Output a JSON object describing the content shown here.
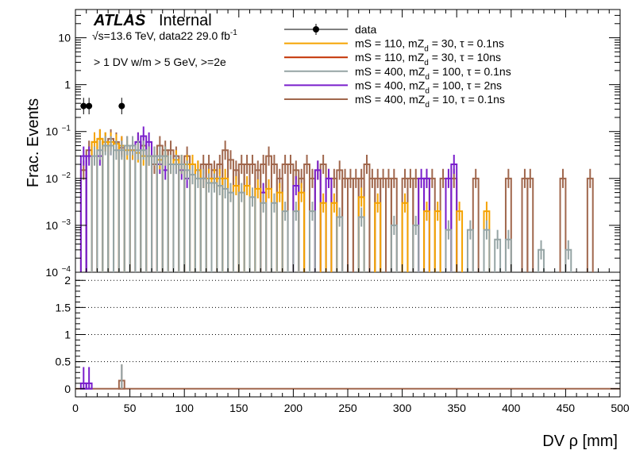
{
  "chart_data": {
    "type": "step-histogram",
    "experiment": "ATLAS",
    "status": "Internal",
    "energy_label": "√s=13.6 TeV, data22 29.0 fb",
    "energy_sup": "-1",
    "selection": "> 1 DV w/m > 5 GeV, >=2e",
    "ylabel": "Frac. Events",
    "xlabel": "DV ρ [mm]",
    "xlim": [
      0,
      500
    ],
    "ylim_log": [
      0.0001,
      40
    ],
    "ratio_ylim": [
      -0.15,
      2.15
    ],
    "x_ticks": [
      "0",
      "50",
      "100",
      "150",
      "200",
      "250",
      "300",
      "350",
      "400",
      "450",
      "500"
    ],
    "y_ticks": [
      {
        "v": 10,
        "base": "10",
        "exp": ""
      },
      {
        "v": 1,
        "base": "1",
        "exp": ""
      },
      {
        "v": 0.1,
        "base": "10",
        "exp": "−1"
      },
      {
        "v": 0.01,
        "base": "10",
        "exp": "−2"
      },
      {
        "v": 0.001,
        "base": "10",
        "exp": "−3"
      },
      {
        "v": 0.0001,
        "base": "10",
        "exp": "−4"
      }
    ],
    "ratio_ticks": [
      "2",
      "1.5",
      "1",
      "0.5",
      "0"
    ],
    "legend": [
      {
        "label": "data",
        "color": "#000000",
        "marker": true
      },
      {
        "label": "mS = 110, mZ",
        "sub": "d",
        "rest": " = 30, τ = 0.1ns",
        "color": "#f5a300"
      },
      {
        "label": "mS = 110, mZ",
        "sub": "d",
        "rest": " = 30, τ = 10ns",
        "color": "#c23000"
      },
      {
        "label": "mS = 400, mZ",
        "sub": "d",
        "rest": " = 100, τ = 0.1ns",
        "color": "#95a4a4"
      },
      {
        "label": "mS = 400, mZ",
        "sub": "d",
        "rest": " = 100, τ = 2ns",
        "color": "#7a1fcc"
      },
      {
        "label": "mS = 400, mZ",
        "sub": "d",
        "rest": " = 10, τ = 0.1ns",
        "color": "#a0674d"
      }
    ],
    "bin_width": 5,
    "data_points": [
      {
        "x": 7.5,
        "y": 0.35
      },
      {
        "x": 12.5,
        "y": 0.35
      },
      {
        "x": 42.5,
        "y": 0.35
      }
    ],
    "series": [
      {
        "name": "mS = 400, mZd = 10, τ = 0.1ns",
        "color": "#a0674d",
        "bins": [
          [
            5,
            0.015
          ],
          [
            10,
            0.04
          ],
          [
            15,
            0.06
          ],
          [
            20,
            0.07
          ],
          [
            25,
            0.06
          ],
          [
            30,
            0.07
          ],
          [
            35,
            0.06
          ],
          [
            40,
            0.045
          ],
          [
            45,
            0.05
          ],
          [
            50,
            0.04
          ],
          [
            55,
            0.06
          ],
          [
            60,
            0.05
          ],
          [
            65,
            0.03
          ],
          [
            70,
            0.02
          ],
          [
            75,
            0.05
          ],
          [
            80,
            0.04
          ],
          [
            85,
            0.04
          ],
          [
            90,
            0.03
          ],
          [
            95,
            0.02
          ],
          [
            100,
            0.03
          ],
          [
            105,
            0.02
          ],
          [
            110,
            0.015
          ],
          [
            115,
            0.02
          ],
          [
            120,
            0.02
          ],
          [
            125,
            0.015
          ],
          [
            130,
            0.02
          ],
          [
            135,
            0.04
          ],
          [
            140,
            0.025
          ],
          [
            145,
            0.015
          ],
          [
            150,
            0.02
          ],
          [
            155,
            0.02
          ],
          [
            160,
            0.02
          ],
          [
            165,
            0.015
          ],
          [
            170,
            0.02
          ],
          [
            175,
            0.03
          ],
          [
            180,
            0.02
          ],
          [
            185,
            0.01
          ],
          [
            190,
            0.02
          ],
          [
            195,
            0.02
          ],
          [
            200,
            0.015
          ],
          [
            205,
            0.01
          ],
          [
            210,
            0.02
          ],
          [
            215,
            0.01
          ],
          [
            220,
            0.015
          ],
          [
            225,
            0.02
          ],
          [
            230,
            0.01
          ],
          [
            235,
            0.01
          ],
          [
            240,
            0.015
          ],
          [
            245,
            0.01
          ],
          [
            250,
            0.01
          ],
          [
            255,
            0.01
          ],
          [
            260,
            0.01
          ],
          [
            265,
            0.02
          ],
          [
            270,
            0.01
          ],
          [
            275,
            0.01
          ],
          [
            280,
            0.01
          ],
          [
            285,
            0.01
          ],
          [
            290,
            0.01
          ],
          [
            300,
            0.01
          ],
          [
            305,
            0.01
          ],
          [
            310,
            0.01
          ],
          [
            320,
            0.01
          ],
          [
            325,
            0.01
          ],
          [
            335,
            0.01
          ],
          [
            345,
            0.01
          ],
          [
            365,
            0.01
          ],
          [
            395,
            0.01
          ],
          [
            410,
            0.01
          ],
          [
            415,
            0.01
          ],
          [
            445,
            0.01
          ],
          [
            470,
            0.01
          ]
        ]
      },
      {
        "name": "mS = 400, mZd = 100, τ = 2ns",
        "color": "#7a1fcc",
        "bins": [
          [
            5,
            0.03
          ],
          [
            10,
            0.03
          ],
          [
            20,
            0.03
          ],
          [
            30,
            0.05
          ],
          [
            40,
            0.05
          ],
          [
            50,
            0.04
          ],
          [
            55,
            0.06
          ],
          [
            60,
            0.08
          ],
          [
            65,
            0.06
          ],
          [
            70,
            0.03
          ],
          [
            75,
            0.02
          ],
          [
            80,
            0.015
          ],
          [
            90,
            0.02
          ],
          [
            95,
            0.015
          ],
          [
            100,
            0.01
          ],
          [
            115,
            0.01
          ],
          [
            125,
            0.01
          ],
          [
            170,
            0.005
          ],
          [
            200,
            0.007
          ],
          [
            220,
            0.015
          ],
          [
            230,
            0.01
          ],
          [
            315,
            0.01
          ],
          [
            320,
            0.01
          ],
          [
            340,
            0.01
          ],
          [
            345,
            0.02
          ]
        ]
      },
      {
        "name": "mS = 110, mZd = 30, τ = 0.1ns",
        "color": "#f5a300",
        "bins": [
          [
            15,
            0.06
          ],
          [
            20,
            0.07
          ],
          [
            25,
            0.06
          ],
          [
            30,
            0.06
          ],
          [
            35,
            0.055
          ],
          [
            40,
            0.05
          ],
          [
            45,
            0.04
          ],
          [
            50,
            0.04
          ],
          [
            55,
            0.035
          ],
          [
            60,
            0.03
          ],
          [
            65,
            0.03
          ],
          [
            70,
            0.03
          ],
          [
            75,
            0.025
          ],
          [
            80,
            0.03
          ],
          [
            85,
            0.02
          ],
          [
            90,
            0.025
          ],
          [
            95,
            0.02
          ],
          [
            100,
            0.02
          ],
          [
            105,
            0.02
          ],
          [
            110,
            0.015
          ],
          [
            115,
            0.01
          ],
          [
            120,
            0.01
          ],
          [
            125,
            0.01
          ],
          [
            130,
            0.01
          ],
          [
            135,
            0.01
          ],
          [
            145,
            0.007
          ],
          [
            155,
            0.007
          ],
          [
            165,
            0.006
          ],
          [
            175,
            0.006
          ],
          [
            185,
            0.005
          ],
          [
            205,
            0.005
          ],
          [
            225,
            0.003
          ],
          [
            235,
            0.003
          ],
          [
            260,
            0.004
          ],
          [
            275,
            0.003
          ],
          [
            300,
            0.003
          ],
          [
            320,
            0.002
          ],
          [
            330,
            0.002
          ],
          [
            350,
            0.002
          ],
          [
            375,
            0.002
          ]
        ]
      },
      {
        "name": "mS = 400, mZd = 100, τ = 0.1ns",
        "color": "#95a4a4",
        "bins": [
          [
            15,
            0.03
          ],
          [
            20,
            0.04
          ],
          [
            25,
            0.05
          ],
          [
            30,
            0.05
          ],
          [
            35,
            0.04
          ],
          [
            40,
            0.04
          ],
          [
            45,
            0.05
          ],
          [
            50,
            0.05
          ],
          [
            55,
            0.04
          ],
          [
            60,
            0.04
          ],
          [
            65,
            0.03
          ],
          [
            70,
            0.03
          ],
          [
            75,
            0.03
          ],
          [
            80,
            0.03
          ],
          [
            85,
            0.02
          ],
          [
            90,
            0.02
          ],
          [
            95,
            0.02
          ],
          [
            100,
            0.015
          ],
          [
            105,
            0.012
          ],
          [
            110,
            0.01
          ],
          [
            115,
            0.01
          ],
          [
            120,
            0.008
          ],
          [
            125,
            0.008
          ],
          [
            130,
            0.007
          ],
          [
            135,
            0.006
          ],
          [
            140,
            0.005
          ],
          [
            150,
            0.005
          ],
          [
            160,
            0.004
          ],
          [
            170,
            0.003
          ],
          [
            180,
            0.003
          ],
          [
            190,
            0.002
          ],
          [
            200,
            0.002
          ],
          [
            215,
            0.002
          ],
          [
            240,
            0.0015
          ],
          [
            260,
            0.0015
          ],
          [
            290,
            0.001
          ],
          [
            310,
            0.001
          ],
          [
            340,
            0.0008
          ],
          [
            360,
            0.0008
          ],
          [
            375,
            0.0008
          ],
          [
            385,
            0.0005
          ],
          [
            395,
            0.0005
          ],
          [
            425,
            0.0003
          ],
          [
            450,
            0.0003
          ]
        ]
      },
      {
        "name": "mS = 110, mZd = 30, τ = 10ns",
        "color": "#c23000",
        "bins": []
      }
    ],
    "ratio": [
      {
        "x": 7.5,
        "y": 0.1,
        "color": "#7a1fcc"
      },
      {
        "x": 12.5,
        "y": 0.1,
        "color": "#7a1fcc"
      },
      {
        "x": 42.5,
        "y": 0.15,
        "color": "#a0674d"
      }
    ]
  }
}
